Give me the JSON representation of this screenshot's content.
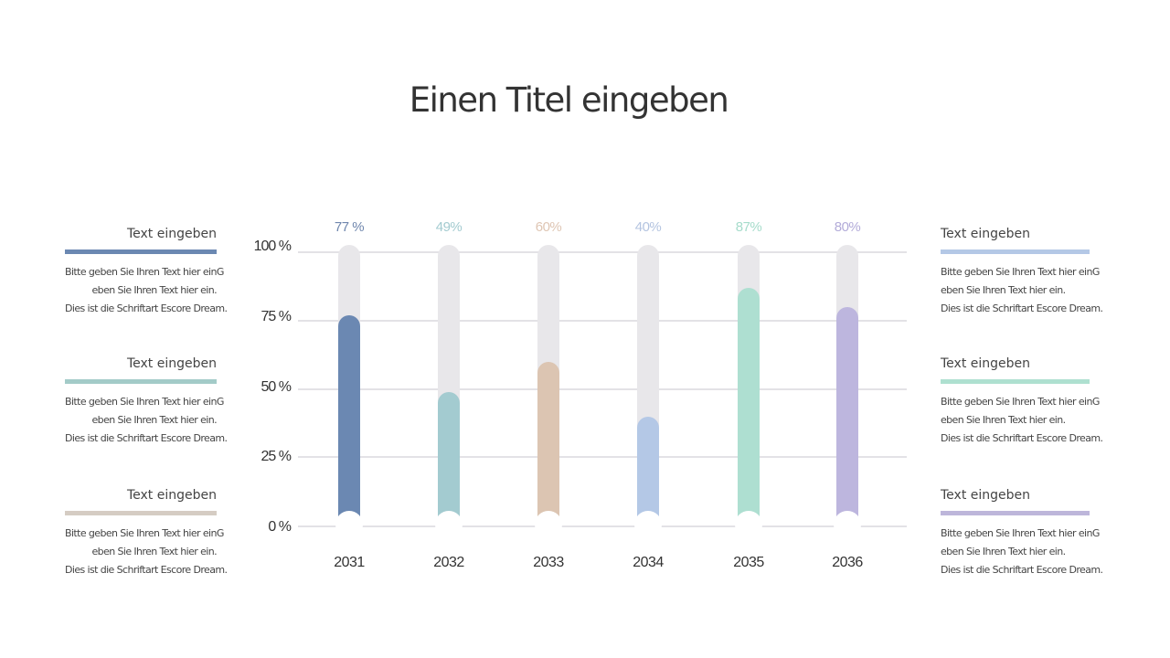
{
  "title": "Einen Titel eingeben",
  "chart_data": {
    "type": "bar",
    "title": "Einen Titel eingeben",
    "categories": [
      "2031",
      "2032",
      "2033",
      "2034",
      "2035",
      "2036"
    ],
    "values": [
      77,
      49,
      60,
      40,
      87,
      80
    ],
    "value_labels": [
      "77 %",
      "49%",
      "60%",
      "40%",
      "87%",
      "80%"
    ],
    "colors": [
      "#6b88b2",
      "#a3cbd0",
      "#dcc5b2",
      "#b4c8e6",
      "#aedfd1",
      "#bdb6de"
    ],
    "label_colors": [
      "#6f86ad",
      "#a3cbd0",
      "#dfc6b4",
      "#b4c4e0",
      "#a6dccb",
      "#b3acd9"
    ],
    "yticks": [
      "0 %",
      "25 %",
      "50 %",
      "75 %",
      "100 %"
    ],
    "ylim": [
      0,
      100
    ],
    "xlabel": "",
    "ylabel": "",
    "grid": true,
    "track_color": "#e8e7ea"
  },
  "notes": {
    "left": [
      {
        "title": "Text eingeben",
        "color": "#6b88b2",
        "lines": [
          "Bitte geben Sie Ihren Text hier einG",
          "eben Sie Ihren Text hier ein.",
          "Dies ist die Schriftart Escore Dream."
        ]
      },
      {
        "title": "Text eingeben",
        "color": "#a3cbc8",
        "lines": [
          "Bitte geben Sie Ihren Text hier einG",
          "eben Sie Ihren Text hier ein.",
          "Dies ist die Schriftart Escore Dream."
        ]
      },
      {
        "title": "Text eingeben",
        "color": "#d5ccc3",
        "lines": [
          "Bitte geben Sie Ihren Text hier einG",
          "eben Sie Ihren Text hier ein.",
          "Dies ist die Schriftart Escore Dream."
        ]
      }
    ],
    "right": [
      {
        "title": "Text eingeben",
        "color": "#b4c8e6",
        "lines": [
          "Bitte geben Sie Ihren Text hier einG",
          "eben Sie Ihren Text hier ein.",
          "Dies ist die Schriftart Escore Dream."
        ]
      },
      {
        "title": "Text eingeben",
        "color": "#aee0d0",
        "lines": [
          "Bitte geben Sie Ihren Text hier einG",
          "eben Sie Ihren Text hier ein.",
          "Dies ist die Schriftart Escore Dream."
        ]
      },
      {
        "title": "Text eingeben",
        "color": "#bdb6da",
        "lines": [
          "Bitte geben Sie Ihren Text hier einG",
          "eben Sie Ihren Text hier ein.",
          "Dies ist die Schriftart Escore Dream."
        ]
      }
    ]
  }
}
